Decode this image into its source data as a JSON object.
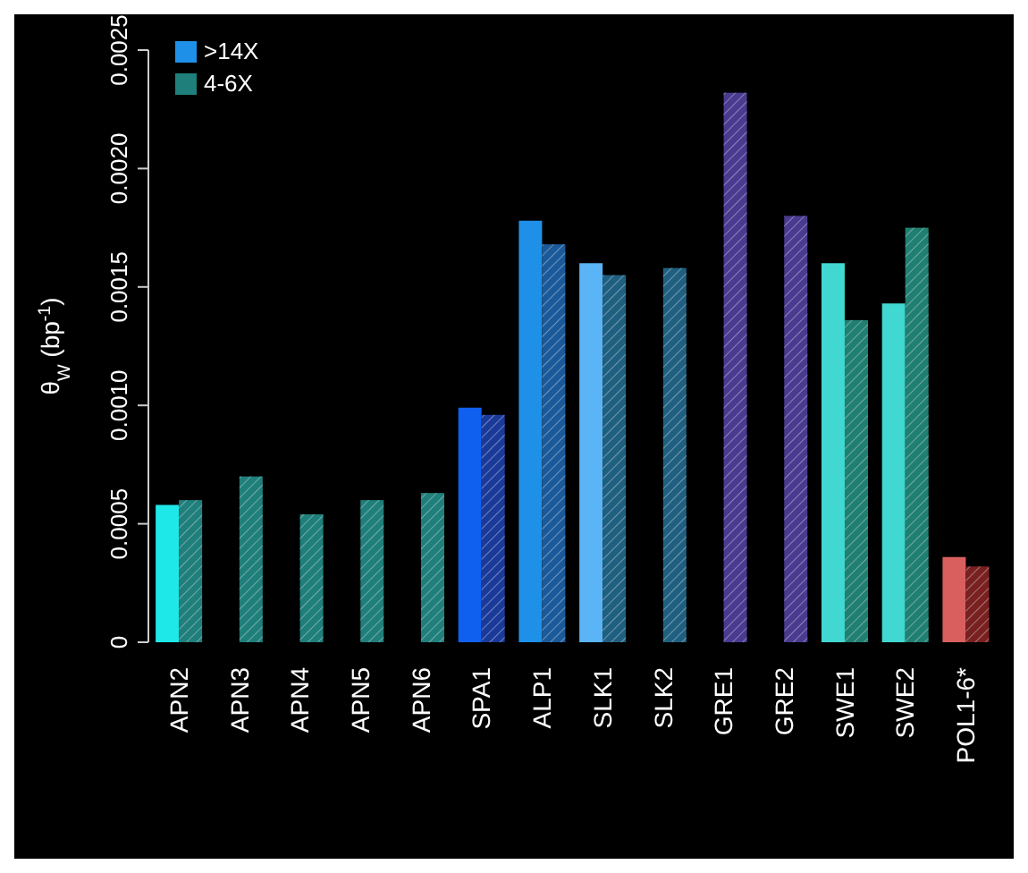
{
  "chart_data": {
    "type": "bar",
    "ylabel": "θ$_{W}$ (bp$^{-1}$)",
    "categories": [
      "APN2",
      "APN3",
      "APN4",
      "APN5",
      "APN6",
      "SPA1",
      "ALP1",
      "SLK1",
      "SLK2",
      "GRE1",
      "GRE2",
      "SWE1",
      "SWE2",
      "POL1-6*"
    ],
    "series": [
      {
        "name": ">14X",
        "color": "#1e90e8",
        "colors": [
          "#1ee8e8",
          null,
          null,
          null,
          null,
          "#1060f0",
          "#1e90e8",
          "#5ab4f5",
          null,
          null,
          null,
          "#40d8d0",
          "#40d8d0",
          "#d95f5f"
        ],
        "values": [
          0.00058,
          null,
          null,
          null,
          null,
          0.00099,
          0.00178,
          0.0016,
          null,
          null,
          null,
          0.0016,
          0.00143,
          0.00036
        ]
      },
      {
        "name": "4-6X",
        "color": "#1f7f7a",
        "colors": [
          "#1f7f7a",
          "#1f7f7a",
          "#1f7f7a",
          "#1f7f7a",
          "#1f7f7a",
          "#1a3a9a",
          "#1a5a9a",
          "#1f6080",
          "#1f6080",
          "#4a3a90",
          "#4a3a90",
          "#1f7f70",
          "#1f7f70",
          "#7a2020"
        ],
        "values": [
          0.0006,
          0.0007,
          0.00054,
          0.0006,
          0.00063,
          0.00096,
          0.00168,
          0.00155,
          0.00158,
          0.00232,
          0.0018,
          0.00136,
          0.00175,
          0.00032
        ]
      }
    ],
    "ylim": [
      0,
      0.0025
    ],
    "yticks": [
      0,
      0.0005,
      {
        "value": 0.001,
        "label": "0.0010"
      },
      0.0015,
      {
        "value": 0.002,
        "label": "0.0020"
      },
      0.0025
    ],
    "legend": "top left",
    "grid": false
  }
}
